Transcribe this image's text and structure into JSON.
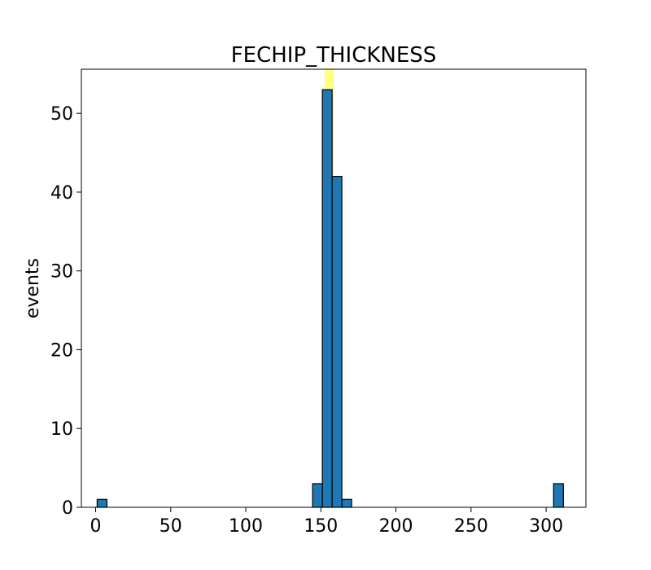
{
  "chart_data": {
    "type": "bar",
    "title": "FECHIP_THICKNESS",
    "xlabel": "",
    "ylabel": "events",
    "xlim": [
      -9.5,
      326.5
    ],
    "ylim": [
      0,
      55.6
    ],
    "x_ticks": [
      0,
      50,
      100,
      150,
      200,
      250,
      300
    ],
    "y_ticks": [
      0,
      10,
      20,
      30,
      40,
      50
    ],
    "bins": [
      {
        "start": 1.0,
        "end": 7.5,
        "count": 1
      },
      {
        "start": 144.5,
        "end": 151.0,
        "count": 3
      },
      {
        "start": 151.0,
        "end": 157.5,
        "count": 53
      },
      {
        "start": 157.5,
        "end": 164.0,
        "count": 42
      },
      {
        "start": 164.0,
        "end": 170.5,
        "count": 1
      },
      {
        "start": 305.0,
        "end": 311.5,
        "count": 3
      }
    ],
    "highlight_band": {
      "start": 152.5,
      "end": 158.5,
      "color": "#ffff80"
    },
    "bar_color": "#1f77b4",
    "edge_color": "#000000",
    "grid": false,
    "legend": "none"
  }
}
